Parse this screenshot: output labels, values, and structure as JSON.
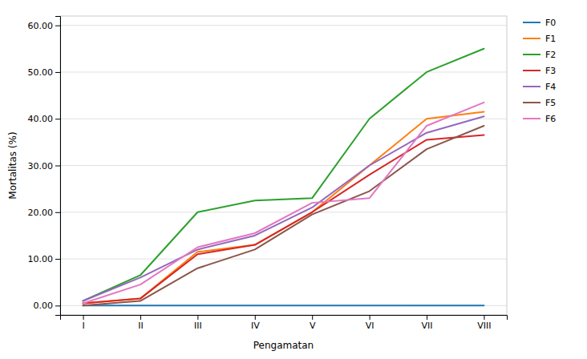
{
  "chart_data": {
    "type": "line",
    "x_label": "Pengamatan",
    "y_label": "Mortalitas (%)",
    "categories": [
      "I",
      "II",
      "III",
      "IV",
      "V",
      "VI",
      "VII",
      "VIII"
    ],
    "series": [
      {
        "name": "F0",
        "values": [
          0.0,
          0.0,
          0.0,
          0.0,
          0.0,
          0.0,
          0.0,
          0.0
        ]
      },
      {
        "name": "F1",
        "values": [
          0.5,
          1.5,
          11.5,
          13.0,
          20.0,
          30.0,
          40.0,
          41.5
        ]
      },
      {
        "name": "F2",
        "values": [
          1.0,
          6.5,
          20.0,
          22.5,
          23.0,
          40.0,
          50.0,
          55.0
        ]
      },
      {
        "name": "F3",
        "values": [
          0.5,
          1.5,
          11.0,
          13.0,
          20.0,
          28.0,
          35.5,
          36.5
        ]
      },
      {
        "name": "F4",
        "values": [
          1.0,
          6.0,
          12.0,
          15.0,
          21.0,
          30.0,
          37.0,
          40.5
        ]
      },
      {
        "name": "F5",
        "values": [
          0.0,
          1.0,
          8.0,
          12.0,
          19.5,
          24.5,
          33.5,
          38.5
        ]
      },
      {
        "name": "F6",
        "values": [
          0.5,
          4.5,
          12.5,
          15.5,
          22.0,
          23.0,
          38.5,
          43.5
        ]
      }
    ],
    "ylim": [
      -2,
      62
    ],
    "yticks": [
      {
        "value": 0.0,
        "label": "0.00"
      },
      {
        "value": 10.0,
        "label": "10.00"
      },
      {
        "value": 20.0,
        "label": "20.00"
      },
      {
        "value": 30.0,
        "label": "30.00"
      },
      {
        "value": 40.0,
        "label": "40.00"
      },
      {
        "value": 50.0,
        "label": "50.00"
      },
      {
        "value": 60.0,
        "label": "60.00"
      }
    ],
    "grid": true,
    "legend": "right"
  }
}
